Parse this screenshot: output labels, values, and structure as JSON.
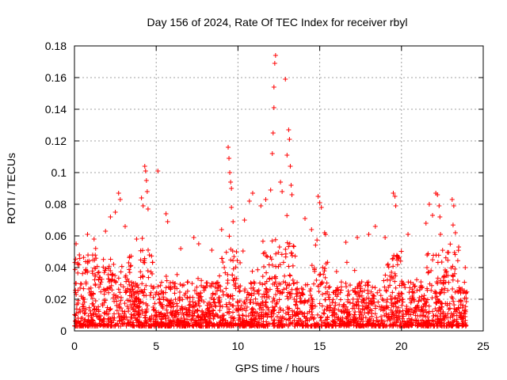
{
  "chart_data": {
    "type": "scatter",
    "title": "Day 156 of 2024, Rate Of TEC Index for receiver rbyl",
    "xlabel": "GPS time / hours",
    "ylabel": "ROTI / TECUs",
    "xlim": [
      0,
      25
    ],
    "ylim": [
      0,
      0.18
    ],
    "x_ticks": [
      0,
      5,
      10,
      15,
      20,
      25
    ],
    "x_tick_labels": [
      "0",
      "5",
      "10",
      "15",
      "20",
      "25"
    ],
    "y_ticks": [
      0,
      0.02,
      0.04,
      0.06,
      0.08,
      0.1,
      0.12,
      0.14,
      0.16,
      0.18
    ],
    "y_tick_labels": [
      "0",
      "0.02",
      "0.04",
      "0.06",
      "0.08",
      "0.1",
      "0.12",
      "0.14",
      "0.16",
      "0.18"
    ],
    "grid": true,
    "marker": "+",
    "color": "#ff0000",
    "series": [
      {
        "name": "ROTI",
        "description_of_range": "dense cloud of points from 0.002 to about 0.05 across 0-24 h, with spikes",
        "highlight_points": [
          {
            "x": 0.1,
            "y": 0.055
          },
          {
            "x": 0.3,
            "y": 0.048
          },
          {
            "x": 0.8,
            "y": 0.061
          },
          {
            "x": 1.2,
            "y": 0.058
          },
          {
            "x": 1.9,
            "y": 0.063
          },
          {
            "x": 2.2,
            "y": 0.072
          },
          {
            "x": 2.5,
            "y": 0.075
          },
          {
            "x": 2.7,
            "y": 0.087
          },
          {
            "x": 2.8,
            "y": 0.083
          },
          {
            "x": 3.1,
            "y": 0.066
          },
          {
            "x": 3.8,
            "y": 0.058
          },
          {
            "x": 4.1,
            "y": 0.084
          },
          {
            "x": 4.2,
            "y": 0.079
          },
          {
            "x": 4.3,
            "y": 0.104
          },
          {
            "x": 4.35,
            "y": 0.101
          },
          {
            "x": 4.4,
            "y": 0.095
          },
          {
            "x": 4.45,
            "y": 0.088
          },
          {
            "x": 4.5,
            "y": 0.077
          },
          {
            "x": 5.1,
            "y": 0.101
          },
          {
            "x": 5.6,
            "y": 0.074
          },
          {
            "x": 5.7,
            "y": 0.069
          },
          {
            "x": 6.5,
            "y": 0.052
          },
          {
            "x": 7.3,
            "y": 0.059
          },
          {
            "x": 7.6,
            "y": 0.055
          },
          {
            "x": 8.4,
            "y": 0.051
          },
          {
            "x": 9.0,
            "y": 0.064
          },
          {
            "x": 9.4,
            "y": 0.116
          },
          {
            "x": 9.45,
            "y": 0.109
          },
          {
            "x": 9.5,
            "y": 0.1
          },
          {
            "x": 9.55,
            "y": 0.094
          },
          {
            "x": 9.6,
            "y": 0.09
          },
          {
            "x": 9.6,
            "y": 0.078
          },
          {
            "x": 9.7,
            "y": 0.069
          },
          {
            "x": 10.4,
            "y": 0.07
          },
          {
            "x": 10.7,
            "y": 0.082
          },
          {
            "x": 10.9,
            "y": 0.087
          },
          {
            "x": 11.4,
            "y": 0.079
          },
          {
            "x": 11.7,
            "y": 0.083
          },
          {
            "x": 12.0,
            "y": 0.089
          },
          {
            "x": 12.1,
            "y": 0.112
          },
          {
            "x": 12.15,
            "y": 0.125
          },
          {
            "x": 12.2,
            "y": 0.141
          },
          {
            "x": 12.2,
            "y": 0.154
          },
          {
            "x": 12.25,
            "y": 0.169
          },
          {
            "x": 12.3,
            "y": 0.174
          },
          {
            "x": 12.6,
            "y": 0.094
          },
          {
            "x": 12.7,
            "y": 0.088
          },
          {
            "x": 12.9,
            "y": 0.159
          },
          {
            "x": 13.0,
            "y": 0.111
          },
          {
            "x": 13.1,
            "y": 0.127
          },
          {
            "x": 13.15,
            "y": 0.121
          },
          {
            "x": 13.2,
            "y": 0.104
          },
          {
            "x": 13.25,
            "y": 0.092
          },
          {
            "x": 13.3,
            "y": 0.086
          },
          {
            "x": 14.1,
            "y": 0.071
          },
          {
            "x": 14.5,
            "y": 0.064
          },
          {
            "x": 14.9,
            "y": 0.085
          },
          {
            "x": 15.0,
            "y": 0.081
          },
          {
            "x": 15.1,
            "y": 0.078
          },
          {
            "x": 15.3,
            "y": 0.062
          },
          {
            "x": 16.6,
            "y": 0.056
          },
          {
            "x": 17.3,
            "y": 0.059
          },
          {
            "x": 18.0,
            "y": 0.061
          },
          {
            "x": 18.4,
            "y": 0.066
          },
          {
            "x": 19.0,
            "y": 0.059
          },
          {
            "x": 19.5,
            "y": 0.087
          },
          {
            "x": 19.6,
            "y": 0.085
          },
          {
            "x": 19.65,
            "y": 0.079
          },
          {
            "x": 20.4,
            "y": 0.061
          },
          {
            "x": 21.5,
            "y": 0.068
          },
          {
            "x": 21.7,
            "y": 0.08
          },
          {
            "x": 21.9,
            "y": 0.073
          },
          {
            "x": 22.1,
            "y": 0.087
          },
          {
            "x": 22.2,
            "y": 0.086
          },
          {
            "x": 22.3,
            "y": 0.079
          },
          {
            "x": 22.35,
            "y": 0.072
          },
          {
            "x": 23.1,
            "y": 0.083
          },
          {
            "x": 23.2,
            "y": 0.079
          },
          {
            "x": 23.3,
            "y": 0.062
          },
          {
            "x": 23.5,
            "y": 0.053
          },
          {
            "x": 23.9,
            "y": 0.04
          }
        ]
      }
    ]
  }
}
